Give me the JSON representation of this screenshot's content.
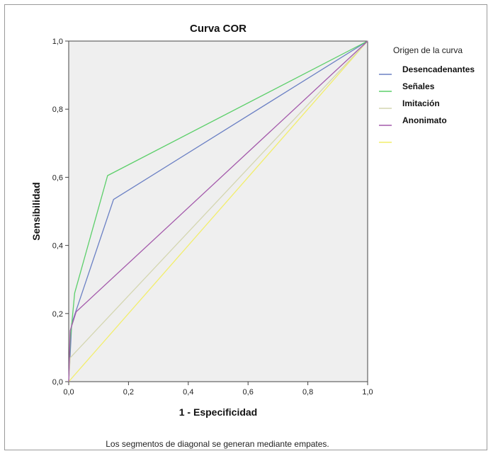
{
  "chart_data": {
    "type": "line",
    "title": "Curva COR",
    "xlabel": "1 - Especificidad",
    "ylabel": "Sensibilidad",
    "xlim": [
      0,
      1
    ],
    "ylim": [
      0,
      1
    ],
    "x_ticks": [
      "0,0",
      "0,2",
      "0,4",
      "0,6",
      "0,8",
      "1,0"
    ],
    "y_ticks": [
      "0,0",
      "0,2",
      "0,4",
      "0,6",
      "0,8",
      "1,0"
    ],
    "grid": false,
    "legend_title": "Origen de la curva",
    "legend_position": "right",
    "footnote": "Los segmentos de diagonal se generan mediante empates.",
    "series": [
      {
        "name": "Desencadenantes",
        "color": "#6b80c4",
        "points": [
          [
            0,
            0
          ],
          [
            0.005,
            0.08
          ],
          [
            0.01,
            0.17
          ],
          [
            0.15,
            0.535
          ],
          [
            1,
            1
          ]
        ]
      },
      {
        "name": "Señales",
        "color": "#5ccf6a",
        "points": [
          [
            0,
            0
          ],
          [
            0.005,
            0.12
          ],
          [
            0.02,
            0.26
          ],
          [
            0.13,
            0.605
          ],
          [
            1,
            1
          ]
        ]
      },
      {
        "name": "Imitación",
        "color": "#d4d6b0",
        "points": [
          [
            0,
            0
          ],
          [
            0.005,
            0.07
          ],
          [
            1,
            1
          ]
        ]
      },
      {
        "name": "Anonimato",
        "color": "#a45aab",
        "points": [
          [
            0,
            0
          ],
          [
            0.005,
            0.15
          ],
          [
            0.025,
            0.205
          ],
          [
            1,
            1
          ]
        ]
      },
      {
        "name": "",
        "color": "#f2ee6a",
        "points": [
          [
            0,
            0
          ],
          [
            1,
            1
          ]
        ]
      }
    ]
  }
}
